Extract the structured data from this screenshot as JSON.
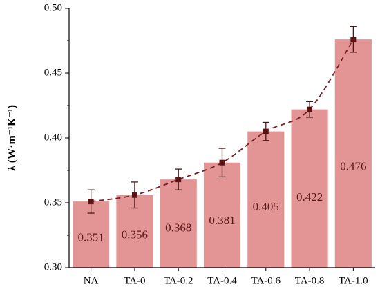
{
  "chart_data": {
    "type": "bar",
    "categories": [
      "NA",
      "TA-0",
      "TA-0.2",
      "TA-0.4",
      "TA-0.6",
      "TA-0.8",
      "TA-1.0"
    ],
    "values": [
      0.351,
      0.356,
      0.368,
      0.381,
      0.405,
      0.422,
      0.476
    ],
    "value_labels": [
      "0.351",
      "0.356",
      "0.368",
      "0.381",
      "0.405",
      "0.422",
      "0.476"
    ],
    "errors": [
      0.009,
      0.01,
      0.008,
      0.011,
      0.007,
      0.006,
      0.01
    ],
    "ylabel": "λ (W·m⁻¹K⁻¹)",
    "ylim": [
      0.3,
      0.5
    ],
    "yticks": [
      "0.30",
      "0.35",
      "0.40",
      "0.45",
      "0.50"
    ],
    "grid": false,
    "trendline": "dashed exponential-like curve through bar tops with square markers",
    "colors": {
      "bar": "#e39596",
      "trend": "#7a1f24",
      "marker": "#5a1414",
      "label": "#5a1a1a"
    }
  }
}
